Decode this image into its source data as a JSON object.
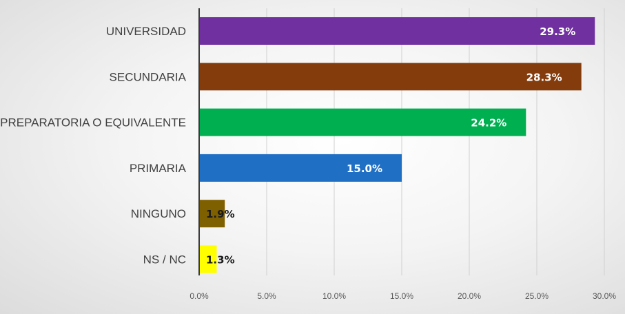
{
  "chart_data": {
    "type": "bar",
    "orientation": "horizontal",
    "title": "",
    "xlabel": "",
    "ylabel": "",
    "categories": [
      "UNIVERSIDAD",
      "SECUNDARIA",
      "PREPARATORIA O EQUIVALENTE",
      "PRIMARIA",
      "NINGUNO",
      "NS / NC"
    ],
    "values": [
      29.3,
      28.3,
      24.2,
      15.0,
      1.9,
      1.3
    ],
    "data_labels": [
      "29.3%",
      "28.3%",
      "24.2%",
      "15.0%",
      "1.9%",
      "1.3%"
    ],
    "colors": [
      "#7030A0",
      "#843C0C",
      "#00B050",
      "#1F6FC5",
      "#7F6000",
      "#FFFF00"
    ],
    "data_label_colors": [
      "#ffffff",
      "#ffffff",
      "#ffffff",
      "#ffffff",
      "#1a1a1a",
      "#1a1a1a"
    ],
    "xlim": [
      0,
      30
    ],
    "x_ticks": [
      0,
      5,
      10,
      15,
      20,
      25,
      30
    ],
    "x_tick_labels": [
      "0.0%",
      "5.0%",
      "10.0%",
      "15.0%",
      "20.0%",
      "25.0%",
      "30.0%"
    ],
    "grid": true,
    "legend": "none"
  }
}
